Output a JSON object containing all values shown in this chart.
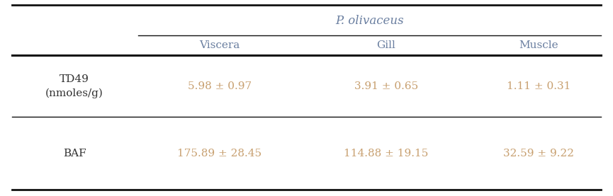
{
  "title": "P. olivaceus",
  "columns": [
    "Viscera",
    "Gill",
    "Muscle"
  ],
  "td49_label": "TD49\n(nmoles/g)",
  "baf_label": "BAF",
  "td49_values": [
    "5.98 ± 0.97",
    "3.91 ± 0.65",
    "1.11 ± 0.31"
  ],
  "baf_values": [
    "175.89 ± 28.45",
    "114.88 ± 19.15",
    "32.59 ± 9.22"
  ],
  "data_color": "#c8a070",
  "header_color": "#6a7fa0",
  "title_color": "#6a7fa0",
  "label_color": "#303030",
  "bg_color": "#ffffff",
  "line_color": "#111111",
  "fontsize": 11,
  "title_fontsize": 12
}
